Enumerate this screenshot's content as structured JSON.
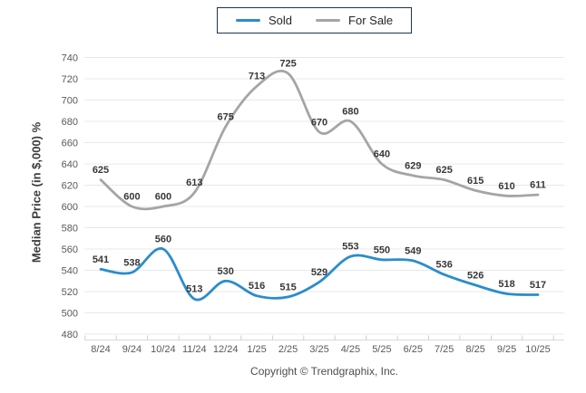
{
  "legend": {
    "items": [
      {
        "label": "Sold",
        "color": "#2b8ccb"
      },
      {
        "label": "For Sale",
        "color": "#a5a5a5"
      }
    ]
  },
  "chart_data": {
    "type": "line",
    "categories": [
      "8/24",
      "9/24",
      "10/24",
      "11/24",
      "12/24",
      "1/25",
      "2/25",
      "3/25",
      "4/25",
      "5/25",
      "6/25",
      "7/25",
      "8/25",
      "9/25",
      "10/25"
    ],
    "series": [
      {
        "name": "Sold",
        "color": "#2b8ccb",
        "values": [
          541,
          538,
          560,
          513,
          530,
          516,
          515,
          529,
          553,
          550,
          549,
          536,
          526,
          518,
          517
        ]
      },
      {
        "name": "For Sale",
        "color": "#a5a5a5",
        "values": [
          625,
          600,
          600,
          613,
          675,
          713,
          725,
          670,
          680,
          640,
          629,
          625,
          615,
          610,
          611
        ]
      }
    ],
    "title": "",
    "xlabel": "",
    "ylabel": "Median Price (in $,000) %",
    "ylim": [
      480,
      740
    ],
    "yticks": [
      480,
      500,
      520,
      540,
      560,
      580,
      600,
      620,
      640,
      660,
      680,
      700,
      720,
      740
    ],
    "grid": true,
    "smooth": true,
    "data_labels": true,
    "legend_position": "top"
  },
  "footer": {
    "copyright": "Copyright © Trendgraphix, Inc."
  },
  "colors": {
    "background": "#ffffff",
    "grid_line": "#e8e8e8",
    "axis_line": "#d6dade",
    "tick_mark": "#c9ced3",
    "tick_label": "#595959",
    "data_label": "#383838",
    "legend_border": "#1e3450"
  }
}
